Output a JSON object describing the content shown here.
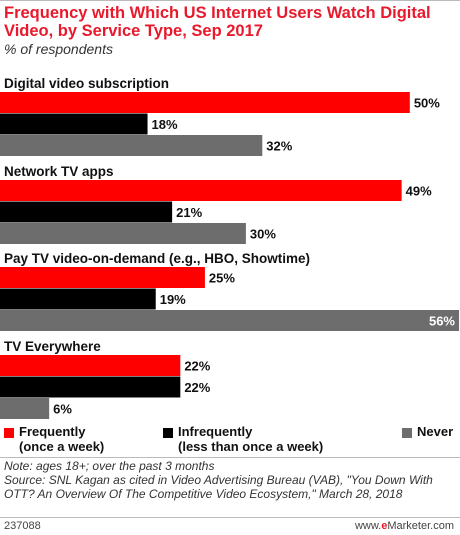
{
  "chart_data": {
    "type": "bar",
    "orientation": "horizontal",
    "title": "Frequency with Which US Internet Users Watch Digital Video, by Service Type, Sep 2017",
    "subtitle": "% of respondents",
    "xlim": [
      0,
      56
    ],
    "value_suffix": "%",
    "grid": false,
    "legend_position": "bottom",
    "categories": [
      "Digital video subscription",
      "Network TV apps",
      "Pay TV video-on-demand (e.g., HBO, Showtime)",
      "TV Everywhere"
    ],
    "series": [
      {
        "name": "Frequently (once a week)",
        "legend_lines": [
          "Frequently",
          "(once a week)"
        ],
        "color": "#ff0000",
        "values": [
          50,
          49,
          25,
          22
        ]
      },
      {
        "name": "Infrequently (less than once a week)",
        "legend_lines": [
          "Infrequently",
          "(less than once a week)"
        ],
        "color": "#000000",
        "values": [
          18,
          21,
          19,
          22
        ]
      },
      {
        "name": "Never",
        "legend_lines": [
          "Never"
        ],
        "color": "#6d6d6d",
        "values": [
          32,
          30,
          56,
          6
        ]
      }
    ]
  },
  "footer": {
    "note": "Note: ages 18+; over the past 3 months",
    "source": "Source: SNL Kagan as cited in Video Advertising Bureau (VAB), \"You Down With OTT? An Overview Of The Competitive Video Ecosystem,\" March 28, 2018",
    "chart_id": "237088",
    "brand_prefix": "www.",
    "brand_e": "e",
    "brand_suffix": "Marketer.com"
  }
}
